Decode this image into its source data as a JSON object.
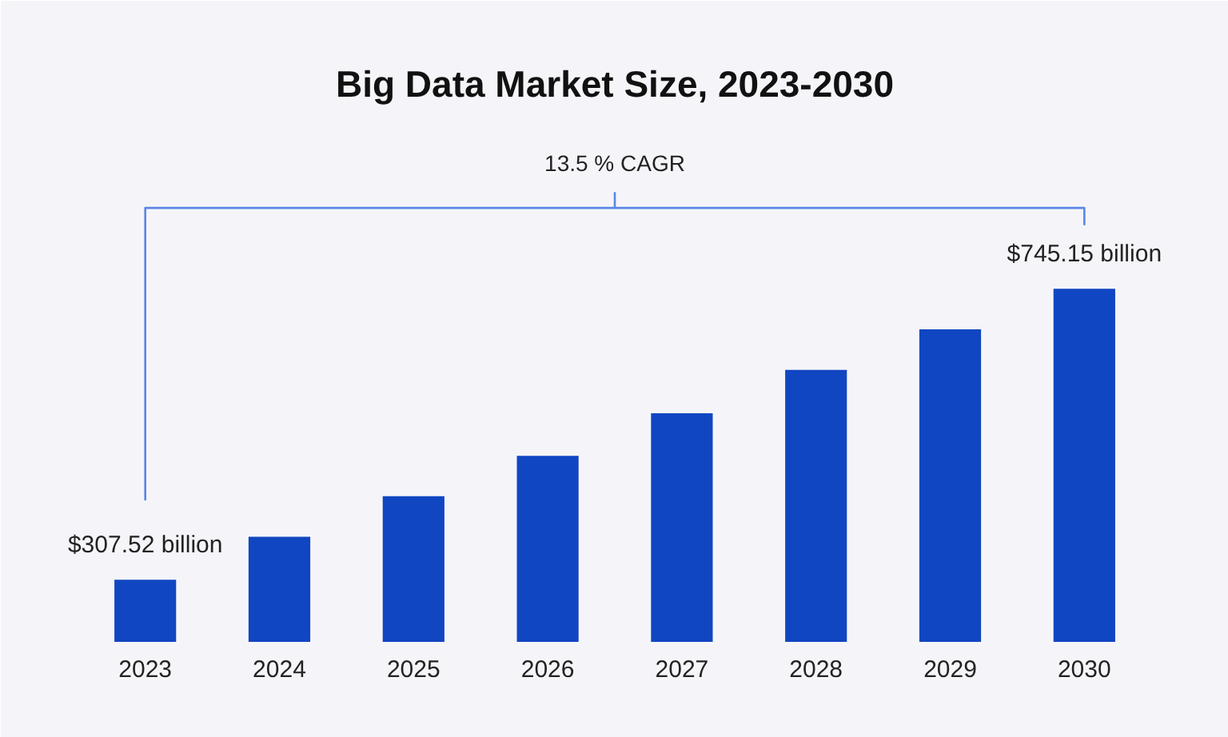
{
  "chart_data": {
    "type": "bar",
    "title": "Big Data Market Size, 2023-2030",
    "categories": [
      "2023",
      "2024",
      "2025",
      "2026",
      "2027",
      "2028",
      "2029",
      "2030"
    ],
    "values": [
      307.52,
      372,
      433,
      494,
      558,
      623,
      684,
      745.15
    ],
    "value_labels": [
      "$307.52 billion",
      null,
      null,
      null,
      null,
      null,
      null,
      "$745.15 billion"
    ],
    "ylim": [
      214,
      1010
    ],
    "color": "#1146c2",
    "annotations": [
      "13.5 % CAGR"
    ]
  }
}
